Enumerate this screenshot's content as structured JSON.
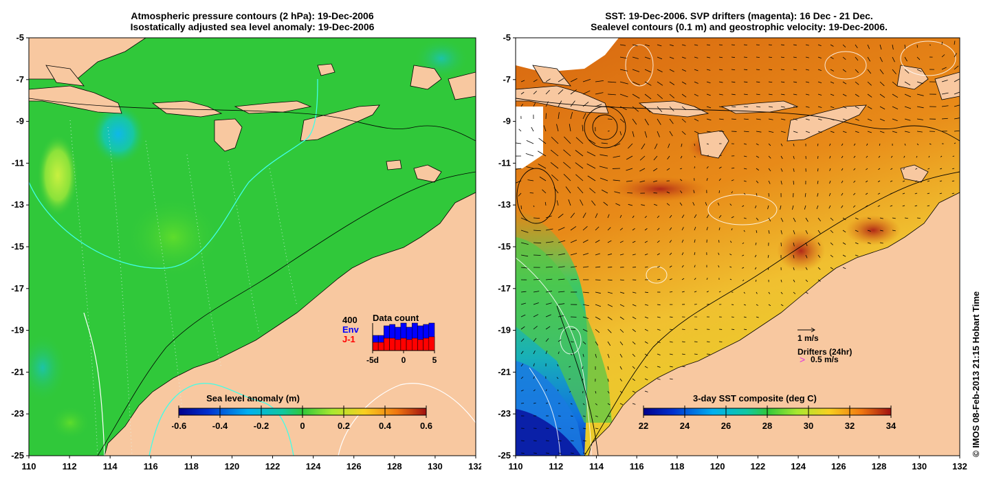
{
  "left_panel": {
    "title_line1": "Atmospheric pressure contours (2 hPa): 19-Dec-2006",
    "title_line2": "Isostatically adjusted sea level anomaly: 19-Dec-2006",
    "colorbar": {
      "label": "Sea level anomaly (m)",
      "ticks": [
        "-0.6",
        "-0.4",
        "-0.2",
        "0",
        "0.2",
        "0.4",
        "0.6"
      ]
    },
    "inset": {
      "title": "Data count",
      "max_label": "400",
      "series1_label": "Env",
      "series2_label": "J-1",
      "series1_color": "#0000ff",
      "series2_color": "#ff0000",
      "xticks": [
        "-5d",
        "0",
        "5"
      ],
      "env_counts": [
        0.55,
        0.55,
        0.9,
        0.95,
        0.85,
        1.0,
        0.85,
        1.0,
        0.9,
        0.95,
        1.0
      ],
      "j1_counts": [
        0.3,
        0.3,
        0.45,
        0.45,
        0.4,
        0.45,
        0.4,
        0.45,
        0.4,
        0.45,
        0.5
      ]
    }
  },
  "right_panel": {
    "title_line1": "SST: 19-Dec-2006. SVP drifters (magenta): 16 Dec - 21 Dec.",
    "title_line2": "Sealevel contours (0.1 m) and geostrophic velocity: 19-Dec-2006.",
    "colorbar": {
      "label": "3-day SST composite (deg C)",
      "ticks": [
        "22",
        "24",
        "26",
        "28",
        "30",
        "32",
        "34"
      ]
    },
    "legend": {
      "velocity_scale": "1 m/s",
      "drifters_label": "Drifters (24hr)",
      "drifter_scale": "0.5 m/s",
      "drifter_symbol": ">"
    }
  },
  "axes": {
    "lat_ticks": [
      "-5",
      "-7",
      "-9",
      "-11",
      "-13",
      "-15",
      "-17",
      "-19",
      "-21",
      "-23",
      "-25"
    ],
    "lon_ticks": [
      "110",
      "112",
      "114",
      "116",
      "118",
      "120",
      "122",
      "124",
      "126",
      "128",
      "130",
      "132"
    ]
  },
  "copyright": "© IMOS 08-Feb-2013 21:15 Hobart Time",
  "colors": {
    "land": "#f8c8a0",
    "ocean_green": "#26c43a",
    "sst_orange": "#e07a10"
  }
}
